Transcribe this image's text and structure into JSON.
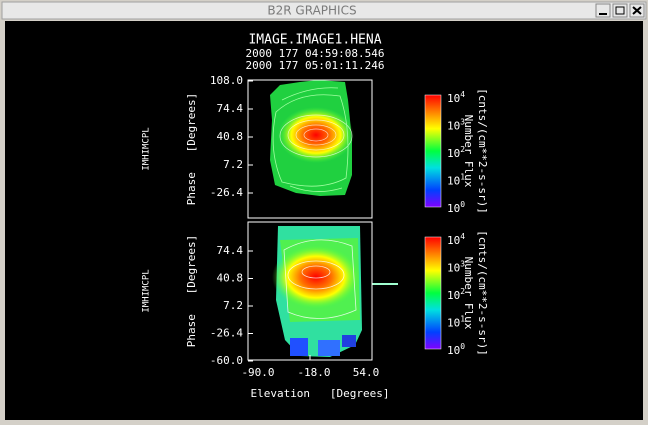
{
  "window": {
    "title": "B2R GRAPHICS"
  },
  "plot": {
    "title": "IMAGE.IMAGE1.HENA",
    "start_time": "2000 177 04:59:08.546",
    "end_time": "2000 177 05:01:11.246",
    "x_label": "Elevation   [Degrees]",
    "x_ticks": [
      "-90.0",
      "-18.0",
      "54.0"
    ],
    "panels": [
      {
        "side_label": "IMHIMCPL",
        "y_label": "Phase   [Degrees]",
        "y_ticks": [
          "108.0",
          "74.4",
          "40.8",
          "7.2",
          "-26.4"
        ],
        "colorbar": {
          "label": "Number Flux",
          "units": "[cnts/(cm**2-s-sr)]",
          "ticks": [
            {
              "base": "10",
              "exp": "4"
            },
            {
              "base": "10",
              "exp": "3"
            },
            {
              "base": "10",
              "exp": "2"
            },
            {
              "base": "10",
              "exp": "1"
            },
            {
              "base": "10",
              "exp": "0"
            }
          ]
        }
      },
      {
        "side_label": "IMHIMCPL",
        "y_label": "Phase   [Degrees]",
        "y_ticks": [
          "74.4",
          "40.8",
          "7.2",
          "-26.4",
          "-60.0"
        ],
        "colorbar": {
          "label": "Number Flux",
          "units": "[cnts/(cm**2-s-sr)]",
          "ticks": [
            {
              "base": "10",
              "exp": "4"
            },
            {
              "base": "10",
              "exp": "3"
            },
            {
              "base": "10",
              "exp": "2"
            },
            {
              "base": "10",
              "exp": "1"
            },
            {
              "base": "10",
              "exp": "0"
            }
          ]
        }
      }
    ]
  }
}
